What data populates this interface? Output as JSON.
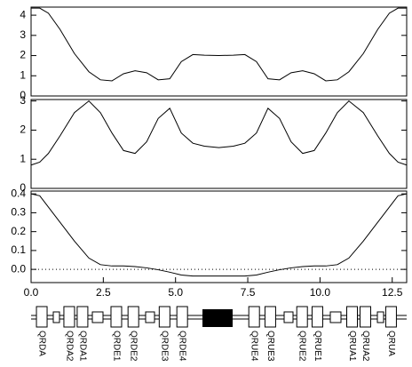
{
  "chart_data": [
    {
      "type": "line",
      "x": [
        0,
        0.3,
        0.6,
        1.0,
        1.5,
        2.0,
        2.4,
        2.8,
        3.2,
        3.6,
        4.0,
        4.4,
        4.8,
        5.2,
        5.6,
        6.0,
        6.5,
        7.0,
        7.4,
        7.8,
        8.2,
        8.6,
        9.0,
        9.4,
        9.8,
        10.2,
        10.6,
        11.0,
        11.5,
        12.0,
        12.4,
        12.7,
        13.0
      ],
      "series": [
        {
          "color": "#000000",
          "values": [
            4.35,
            4.35,
            4.1,
            3.3,
            2.1,
            1.2,
            0.8,
            0.75,
            1.1,
            1.25,
            1.15,
            0.8,
            0.85,
            1.7,
            2.05,
            2.02,
            2.0,
            2.02,
            2.05,
            1.7,
            0.85,
            0.8,
            1.15,
            1.25,
            1.1,
            0.75,
            0.8,
            1.2,
            2.1,
            3.3,
            4.1,
            4.35,
            4.35
          ]
        }
      ],
      "xlim": [
        0,
        13
      ],
      "ylim": [
        0,
        4.4
      ],
      "yticks": [
        0,
        1,
        2,
        3,
        4
      ]
    },
    {
      "type": "line",
      "x": [
        0,
        0.3,
        0.6,
        1.0,
        1.5,
        2.0,
        2.4,
        2.8,
        3.2,
        3.6,
        4.0,
        4.4,
        4.8,
        5.2,
        5.6,
        6.0,
        6.5,
        7.0,
        7.4,
        7.8,
        8.2,
        8.6,
        9.0,
        9.4,
        9.8,
        10.2,
        10.6,
        11.0,
        11.5,
        12.0,
        12.4,
        12.7,
        13.0
      ],
      "series": [
        {
          "color": "#000000",
          "values": [
            0.8,
            0.9,
            1.2,
            1.8,
            2.6,
            3.0,
            2.6,
            1.9,
            1.3,
            1.2,
            1.6,
            2.4,
            2.75,
            1.9,
            1.55,
            1.45,
            1.4,
            1.45,
            1.55,
            1.9,
            2.75,
            2.4,
            1.6,
            1.2,
            1.3,
            1.9,
            2.6,
            3.0,
            2.6,
            1.8,
            1.2,
            0.9,
            0.8
          ]
        }
      ],
      "xlim": [
        0,
        13
      ],
      "ylim": [
        0,
        3.05
      ],
      "yticks": [
        0,
        1,
        2,
        3
      ]
    },
    {
      "type": "line",
      "x": [
        0,
        0.3,
        0.6,
        1.0,
        1.5,
        2.0,
        2.4,
        2.8,
        3.2,
        3.6,
        4.0,
        4.4,
        4.8,
        5.2,
        5.6,
        6.0,
        6.5,
        7.0,
        7.4,
        7.8,
        8.2,
        8.6,
        9.0,
        9.4,
        9.8,
        10.2,
        10.6,
        11.0,
        11.5,
        12.0,
        12.4,
        12.7,
        13.0
      ],
      "series": [
        {
          "color": "#000000",
          "values": [
            0.4,
            0.39,
            0.33,
            0.25,
            0.15,
            0.06,
            0.025,
            0.018,
            0.018,
            0.015,
            0.008,
            -0.002,
            -0.015,
            -0.03,
            -0.035,
            -0.035,
            -0.035,
            -0.035,
            -0.035,
            -0.03,
            -0.015,
            -0.002,
            0.008,
            0.015,
            0.018,
            0.018,
            0.025,
            0.06,
            0.15,
            0.25,
            0.33,
            0.39,
            0.4
          ]
        }
      ],
      "xlim": [
        0,
        13
      ],
      "ylim": [
        -0.07,
        0.415
      ],
      "yticks": [
        {
          "value": 0,
          "label": "0.0"
        },
        0.1,
        0.2,
        0.3,
        0.4
      ],
      "xticks": [
        {
          "value": 0,
          "label": "0.0"
        },
        2.5,
        {
          "value": 5,
          "label": "5.0"
        },
        7.5,
        {
          "value": 10,
          "label": "10.0"
        },
        12.5
      ],
      "zero_line": true
    }
  ],
  "lattice": {
    "elements": [
      {
        "label": "QRDA",
        "s": 0.37
      },
      {
        "label": "QRDA2",
        "s": 1.32
      },
      {
        "label": "QRDA1",
        "s": 1.78
      },
      {
        "label": "QRDE1",
        "s": 2.95
      },
      {
        "label": "QRDE2",
        "s": 3.54
      },
      {
        "label": "QRDE3",
        "s": 4.62
      },
      {
        "label": "QRDE4",
        "s": 5.23
      },
      {
        "label": "QRUE4",
        "s": 7.72
      },
      {
        "label": "QRUE3",
        "s": 8.28
      },
      {
        "label": "QRUE2",
        "s": 9.38
      },
      {
        "label": "QRUE1",
        "s": 9.91
      },
      {
        "label": "QRUA1",
        "s": 11.11
      },
      {
        "label": "QRUA2",
        "s": 11.57
      },
      {
        "label": "QRUA",
        "s": 12.46
      }
    ]
  }
}
